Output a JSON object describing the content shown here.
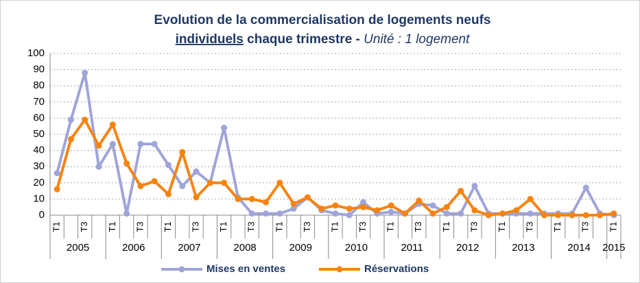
{
  "chart_data": {
    "type": "line",
    "title": "Evolution de la commercialisation de logements neufs",
    "title_underlined": "individuels",
    "title_rest": "chaque trimestre -",
    "title_unit": "Unité : 1 logement",
    "categories": [
      "T1",
      null,
      "T3",
      null,
      "T1",
      null,
      "T3",
      null,
      "T1",
      null,
      "T3",
      null,
      "T1",
      null,
      "T3",
      null,
      "T1",
      null,
      "T3",
      null,
      "T1",
      null,
      "T3",
      null,
      "T1",
      null,
      "T3",
      null,
      "T1",
      null,
      "T3",
      null,
      "T1",
      null,
      "T3",
      null,
      "T1",
      null,
      "T3",
      null,
      "T1"
    ],
    "years": [
      "2005",
      "2006",
      "2007",
      "2008",
      "2009",
      "2010",
      "2011",
      "2012",
      "2013",
      "2014",
      "2015"
    ],
    "series": [
      {
        "name": "Mises en ventes",
        "color": "#9fa5d9",
        "values": [
          26,
          59,
          88,
          30,
          44,
          1,
          44,
          44,
          31,
          18,
          27,
          20,
          54,
          11,
          1,
          1,
          1,
          4,
          11,
          3,
          1,
          0,
          8,
          1,
          2,
          1,
          7,
          6,
          1,
          1,
          18,
          1,
          1,
          1,
          1,
          1,
          1,
          1,
          17,
          1,
          0
        ]
      },
      {
        "name": "Réservations",
        "color": "#f7830f",
        "values": [
          16,
          47,
          59,
          43,
          56,
          32,
          18,
          21,
          13,
          39,
          11,
          20,
          20,
          10,
          10,
          8,
          20,
          7,
          11,
          4,
          6,
          4,
          5,
          3,
          6,
          1,
          9,
          1,
          5,
          15,
          3,
          0,
          1,
          3,
          10,
          0,
          0,
          0,
          0,
          0,
          1
        ]
      }
    ],
    "ylim": [
      0,
      100
    ],
    "yticks": [
      0,
      10,
      20,
      30,
      40,
      50,
      60,
      70,
      80,
      90,
      100
    ],
    "grid": true,
    "legend": "bottom"
  }
}
